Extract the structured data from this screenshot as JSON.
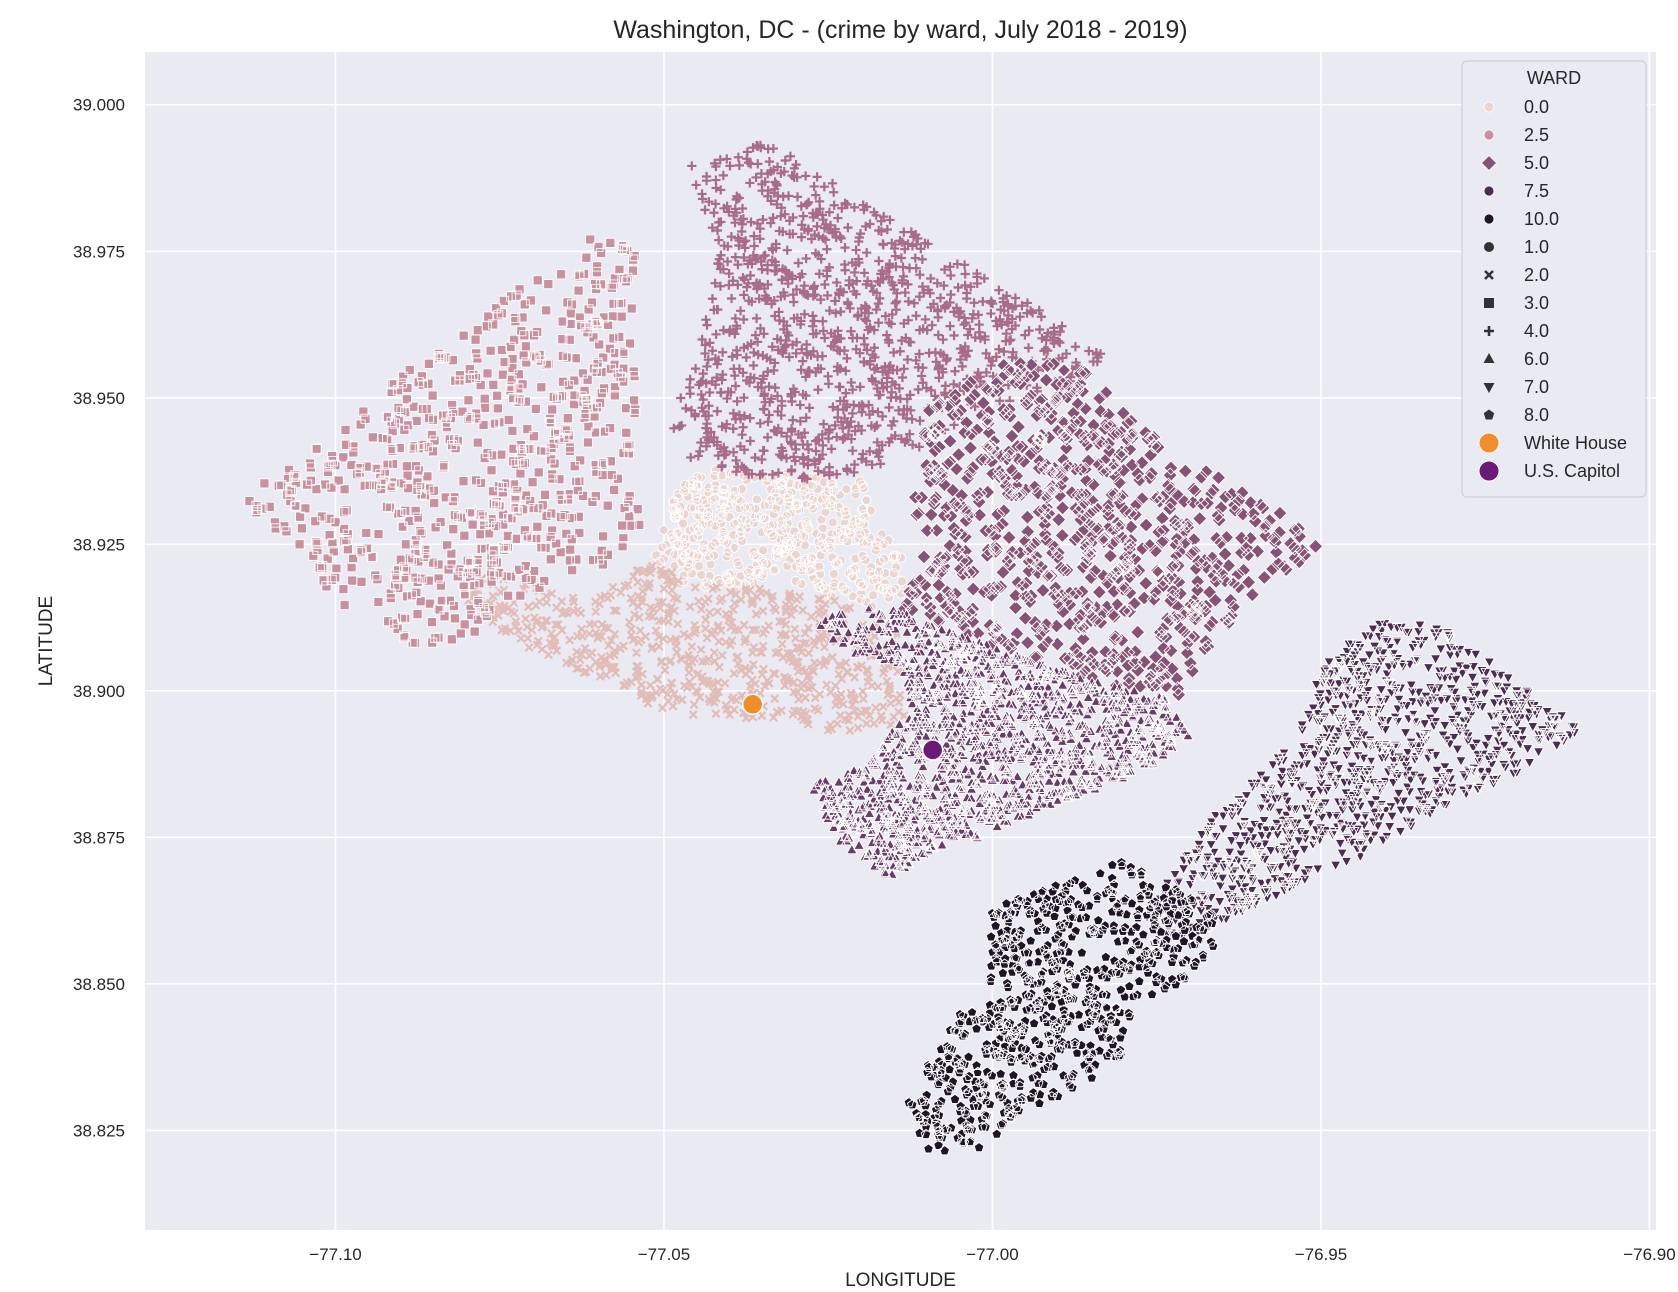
{
  "chart_data": {
    "type": "scatter",
    "title": "Washington, DC - (crime by ward, July 2018 - 2019)",
    "xlabel": "LONGITUDE",
    "ylabel": "LATITUDE",
    "xlim": [
      -77.129,
      -76.899
    ],
    "ylim": [
      38.808,
      39.009
    ],
    "xticks": [
      -77.1,
      -77.05,
      -77.0,
      -76.95,
      -76.9
    ],
    "xtick_labels": [
      "−77.10",
      "−77.05",
      "−77.00",
      "−76.95",
      "−76.90"
    ],
    "yticks": [
      38.825,
      38.85,
      38.875,
      38.9,
      38.925,
      38.95,
      38.975,
      39.0
    ],
    "ytick_labels": [
      "38.825",
      "38.850",
      "38.875",
      "38.900",
      "38.925",
      "38.950",
      "38.975",
      "39.000"
    ],
    "grid": true,
    "background_color": "#eaeaf2",
    "legend_position": "upper-right",
    "legend": {
      "title": "WARD",
      "hue_entries": [
        {
          "label": "0.0",
          "color": "#ebd5d0"
        },
        {
          "label": "2.5",
          "color": "#c9909f"
        },
        {
          "label": "5.0",
          "color": "#875276"
        },
        {
          "label": "7.5",
          "color": "#4b2c52"
        },
        {
          "label": "10.0",
          "color": "#1f1528"
        }
      ],
      "style_entries": [
        {
          "label": "1.0",
          "marker": "circle"
        },
        {
          "label": "2.0",
          "marker": "x"
        },
        {
          "label": "3.0",
          "marker": "square"
        },
        {
          "label": "4.0",
          "marker": "plus"
        },
        {
          "label": "6.0",
          "marker": "triangle-up"
        },
        {
          "label": "7.0",
          "marker": "triangle-down"
        },
        {
          "label": "8.0",
          "marker": "pentagon"
        }
      ],
      "landmark_entries": [
        {
          "label": "White House",
          "color": "#f28d2b"
        },
        {
          "label": "U.S. Capitol",
          "color": "#6b1a7a"
        }
      ]
    },
    "landmarks": [
      {
        "name": "White House",
        "lon": -77.0365,
        "lat": 38.8977,
        "color": "#f28d2b"
      },
      {
        "name": "U.S. Capitol",
        "lon": -77.0091,
        "lat": 38.8899,
        "color": "#6b1a7a"
      }
    ],
    "series": [
      {
        "ward": 1,
        "marker": "circle",
        "color": "#ebd5d0",
        "n": 450,
        "polygon": [
          [
            -77.048,
            38.934
          ],
          [
            -77.044,
            38.938
          ],
          [
            -77.031,
            38.937
          ],
          [
            -77.019,
            38.936
          ],
          [
            -77.018,
            38.929
          ],
          [
            -77.014,
            38.924
          ],
          [
            -77.013,
            38.917
          ],
          [
            -77.017,
            38.914
          ],
          [
            -77.023,
            38.915
          ],
          [
            -77.028,
            38.918
          ],
          [
            -77.034,
            38.919
          ],
          [
            -77.04,
            38.917
          ],
          [
            -77.048,
            38.918
          ],
          [
            -77.052,
            38.923
          ]
        ]
      },
      {
        "ward": 2,
        "marker": "x",
        "color": "#e2bdb8",
        "n": 650,
        "polygon": [
          [
            -77.08,
            38.92
          ],
          [
            -77.07,
            38.919
          ],
          [
            -77.062,
            38.915
          ],
          [
            -77.052,
            38.922
          ],
          [
            -77.046,
            38.919
          ],
          [
            -77.04,
            38.918
          ],
          [
            -77.03,
            38.917
          ],
          [
            -77.022,
            38.915
          ],
          [
            -77.018,
            38.912
          ],
          [
            -77.014,
            38.91
          ],
          [
            -77.013,
            38.9
          ],
          [
            -77.013,
            38.894
          ],
          [
            -77.024,
            38.893
          ],
          [
            -77.034,
            38.895
          ],
          [
            -77.048,
            38.896
          ],
          [
            -77.054,
            38.898
          ],
          [
            -77.062,
            38.903
          ],
          [
            -77.072,
            38.908
          ],
          [
            -77.08,
            38.914
          ]
        ]
      },
      {
        "ward": 3,
        "marker": "square",
        "color": "#c9909f",
        "n": 700,
        "polygon": [
          [
            -77.114,
            38.933
          ],
          [
            -77.105,
            38.94
          ],
          [
            -77.094,
            38.95
          ],
          [
            -77.083,
            38.96
          ],
          [
            -77.071,
            38.97
          ],
          [
            -77.06,
            38.978
          ],
          [
            -77.053,
            38.975
          ],
          [
            -77.055,
            38.964
          ],
          [
            -77.054,
            38.95
          ],
          [
            -77.056,
            38.935
          ],
          [
            -77.052,
            38.927
          ],
          [
            -77.058,
            38.922
          ],
          [
            -77.066,
            38.918
          ],
          [
            -77.075,
            38.915
          ],
          [
            -77.08,
            38.908
          ],
          [
            -77.088,
            38.908
          ],
          [
            -77.097,
            38.913
          ],
          [
            -77.106,
            38.922
          ]
        ]
      },
      {
        "ward": 4,
        "marker": "plus",
        "color": "#a86c89",
        "n": 1100,
        "polygon": [
          [
            -77.046,
            38.99
          ],
          [
            -77.034,
            38.994
          ],
          [
            -77.022,
            38.985
          ],
          [
            -77.009,
            38.976
          ],
          [
            -76.997,
            38.968
          ],
          [
            -76.983,
            38.958
          ],
          [
            -76.987,
            38.951
          ],
          [
            -77.0,
            38.949
          ],
          [
            -77.008,
            38.944
          ],
          [
            -77.015,
            38.938
          ],
          [
            -77.028,
            38.936
          ],
          [
            -77.04,
            38.937
          ],
          [
            -77.047,
            38.938
          ],
          [
            -77.049,
            38.946
          ],
          [
            -77.045,
            38.957
          ],
          [
            -77.042,
            38.972
          ]
        ]
      },
      {
        "ward": 5,
        "marker": "diamond",
        "color": "#875276",
        "n": 800,
        "polygon": [
          [
            -77.01,
            38.948
          ],
          [
            -76.999,
            38.956
          ],
          [
            -76.987,
            38.956
          ],
          [
            -76.978,
            38.946
          ],
          [
            -76.968,
            38.938
          ],
          [
            -76.955,
            38.93
          ],
          [
            -76.95,
            38.924
          ],
          [
            -76.96,
            38.917
          ],
          [
            -76.968,
            38.906
          ],
          [
            -76.972,
            38.898
          ],
          [
            -76.985,
            38.902
          ],
          [
            -76.995,
            38.905
          ],
          [
            -77.005,
            38.91
          ],
          [
            -77.014,
            38.913
          ],
          [
            -77.011,
            38.922
          ],
          [
            -77.012,
            38.932
          ]
        ]
      },
      {
        "ward": 6,
        "marker": "triangle-up",
        "color": "#6a3a69",
        "n": 1400,
        "polygon": [
          [
            -77.027,
            38.912
          ],
          [
            -77.018,
            38.915
          ],
          [
            -77.006,
            38.91
          ],
          [
            -76.994,
            38.905
          ],
          [
            -76.983,
            38.901
          ],
          [
            -76.974,
            38.899
          ],
          [
            -76.97,
            38.892
          ],
          [
            -76.977,
            38.886
          ],
          [
            -76.99,
            38.881
          ],
          [
            -76.998,
            38.876
          ],
          [
            -77.008,
            38.873
          ],
          [
            -77.016,
            38.868
          ],
          [
            -77.023,
            38.874
          ],
          [
            -77.028,
            38.884
          ],
          [
            -77.02,
            38.887
          ],
          [
            -77.012,
            38.897
          ],
          [
            -77.015,
            38.905
          ],
          [
            -77.022,
            38.906
          ]
        ]
      },
      {
        "ward": 7,
        "marker": "triangle-down",
        "color": "#4b2c52",
        "n": 1000,
        "polygon": [
          [
            -76.966,
            38.879
          ],
          [
            -76.954,
            38.892
          ],
          [
            -76.95,
            38.904
          ],
          [
            -76.942,
            38.912
          ],
          [
            -76.932,
            38.911
          ],
          [
            -76.92,
            38.902
          ],
          [
            -76.91,
            38.893
          ],
          [
            -76.92,
            38.886
          ],
          [
            -76.932,
            38.88
          ],
          [
            -76.943,
            38.872
          ],
          [
            -76.955,
            38.866
          ],
          [
            -76.966,
            38.86
          ],
          [
            -76.975,
            38.856
          ],
          [
            -76.977,
            38.862
          ],
          [
            -76.972,
            38.87
          ]
        ]
      },
      {
        "ward": 8,
        "marker": "pentagon",
        "color": "#1f1528",
        "n": 700,
        "polygon": [
          [
            -77.013,
            38.83
          ],
          [
            -77.01,
            38.821
          ],
          [
            -77.002,
            38.822
          ],
          [
            -76.995,
            38.828
          ],
          [
            -76.986,
            38.833
          ],
          [
            -76.98,
            38.838
          ],
          [
            -76.978,
            38.846
          ],
          [
            -76.97,
            38.851
          ],
          [
            -76.966,
            38.857
          ],
          [
            -76.967,
            38.863
          ],
          [
            -76.975,
            38.868
          ],
          [
            -76.98,
            38.871
          ],
          [
            -76.99,
            38.867
          ],
          [
            -77.0,
            38.863
          ],
          [
            -77.001,
            38.855
          ],
          [
            -77.0,
            38.848
          ],
          [
            -77.005,
            38.845
          ],
          [
            -77.009,
            38.838
          ]
        ]
      }
    ]
  }
}
